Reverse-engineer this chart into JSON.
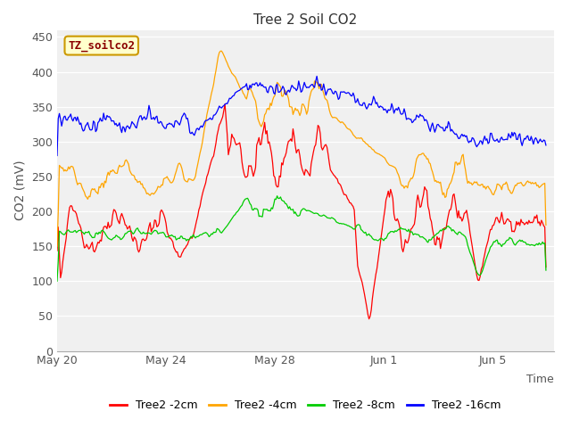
{
  "title": "Tree 2 Soil CO2",
  "xlabel": "Time",
  "ylabel": "CO2 (mV)",
  "ylim": [
    0,
    460
  ],
  "yticks": [
    0,
    50,
    100,
    150,
    200,
    250,
    300,
    350,
    400,
    450
  ],
  "plot_bg_color": "#f0f0f0",
  "fig_bg_color": "#ffffff",
  "legend_labels": [
    "Tree2 -2cm",
    "Tree2 -4cm",
    "Tree2 -8cm",
    "Tree2 -16cm"
  ],
  "line_colors": [
    "#ff0000",
    "#ffa500",
    "#00cc00",
    "#0000ff"
  ],
  "watermark_text": "TZ_soilco2",
  "watermark_bg": "#ffffcc",
  "watermark_border": "#cc9900",
  "seed": 42
}
